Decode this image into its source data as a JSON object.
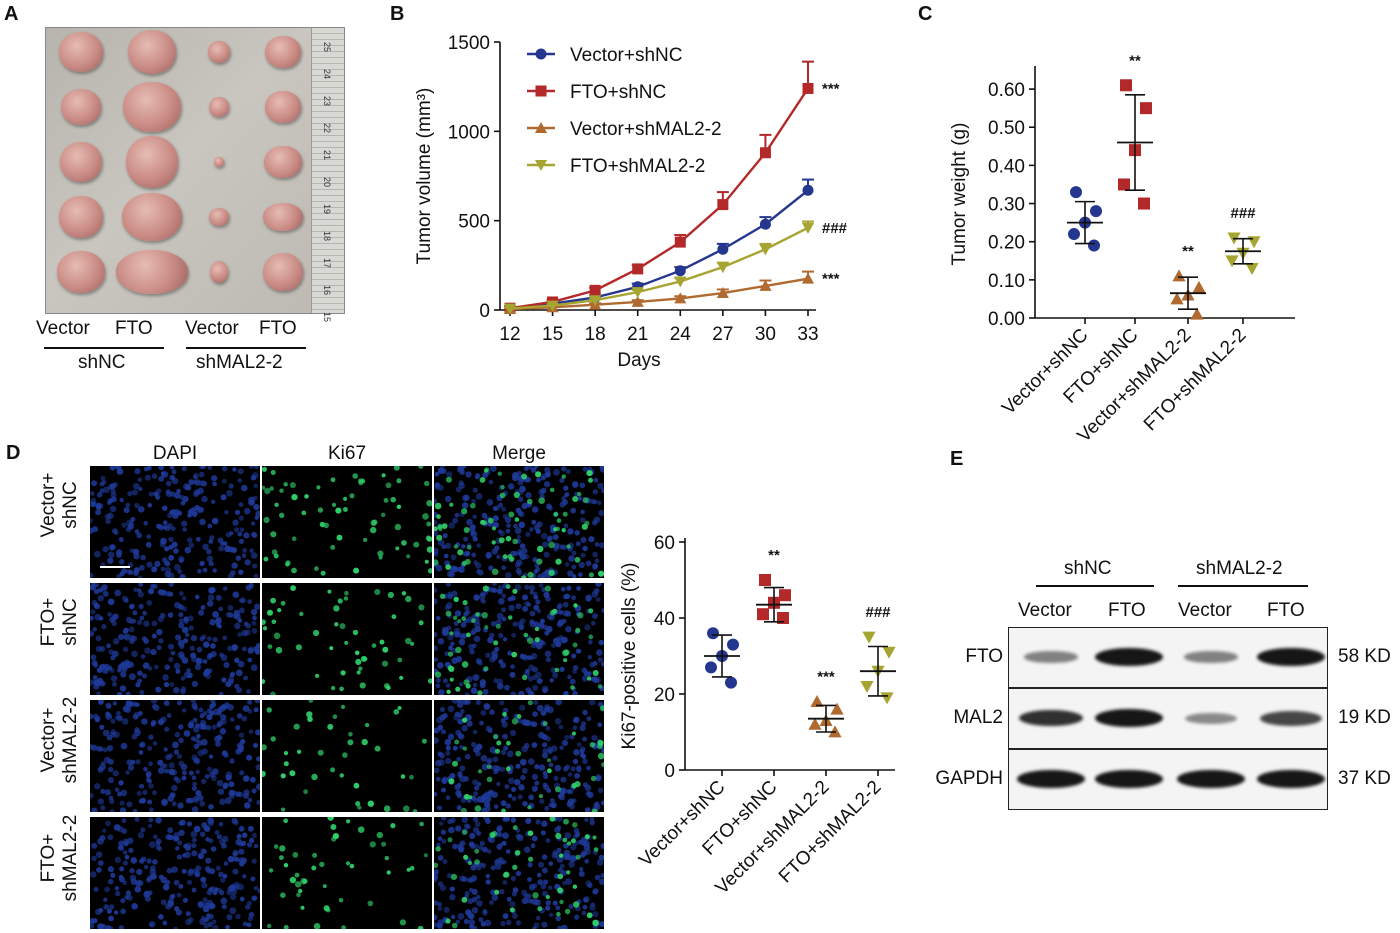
{
  "panels": {
    "a": "A",
    "b": "B",
    "c": "C",
    "d": "D",
    "e": "E"
  },
  "panel_a": {
    "col_labels": [
      "Vector",
      "FTO",
      "Vector",
      "FTO"
    ],
    "group_labels": [
      "shNC",
      "shMAL2-2"
    ],
    "ruler_numbers": [
      "25",
      "24",
      "23",
      "22",
      "21",
      "20",
      "19",
      "18",
      "17",
      "16",
      "15"
    ]
  },
  "panel_d_images": {
    "column_headers": [
      "DAPI",
      "Ki67",
      "Merge"
    ],
    "row_labels": [
      [
        "Vector+",
        "shNC"
      ],
      [
        "FTO+",
        "shNC"
      ],
      [
        "Vector+",
        "shMAL2-2"
      ],
      [
        "FTO+",
        "shMAL2-2"
      ]
    ]
  },
  "panel_e": {
    "group_labels": [
      "shNC",
      "shMAL2-2"
    ],
    "lane_labels": [
      "Vector",
      "FTO",
      "Vector",
      "FTO"
    ],
    "proteins": [
      {
        "name": "FTO",
        "size": "58 KD",
        "intensity": [
          0.35,
          1.0,
          0.35,
          1.0
        ]
      },
      {
        "name": "MAL2",
        "size": "19 KD",
        "intensity": [
          0.85,
          1.0,
          0.3,
          0.7
        ]
      },
      {
        "name": "GAPDH",
        "size": "37 KD",
        "intensity": [
          1.0,
          1.0,
          1.0,
          1.0
        ]
      }
    ]
  },
  "colors": {
    "Vector+shNC": "#25368f",
    "FTO+shNC": "#b3292a",
    "Vector+shMAL2-2": "#b06a2f",
    "FTO+shMAL2-2": "#a7a531",
    "dapi": "#1f3a9a",
    "ki67": "#2fcf6a"
  },
  "chart_data": [
    {
      "type": "line",
      "panel": "B",
      "xlabel": "Days",
      "ylabel": "Tumor volume (mm³)",
      "x": [
        12,
        15,
        18,
        21,
        24,
        27,
        30,
        33
      ],
      "x_ticks": [
        "12",
        "15",
        "18",
        "21",
        "24",
        "27",
        "30",
        "33"
      ],
      "ylim": [
        0,
        1500
      ],
      "y_ticks": [
        "0",
        "500",
        "1000",
        "1500"
      ],
      "legend_position": "top-left",
      "series": [
        {
          "name": "Vector+shNC",
          "marker": "circle",
          "values": [
            10,
            35,
            70,
            130,
            220,
            340,
            480,
            670
          ],
          "err": [
            8,
            10,
            12,
            18,
            20,
            30,
            40,
            60
          ],
          "annotation": ""
        },
        {
          "name": "FTO+shNC",
          "marker": "square",
          "values": [
            10,
            45,
            110,
            230,
            380,
            590,
            880,
            1240
          ],
          "err": [
            8,
            12,
            15,
            20,
            40,
            70,
            100,
            150
          ],
          "annotation": "***"
        },
        {
          "name": "Vector+shMAL2-2",
          "marker": "triangle-up",
          "values": [
            5,
            15,
            30,
            45,
            65,
            95,
            135,
            175
          ],
          "err": [
            5,
            5,
            8,
            10,
            12,
            20,
            30,
            40
          ],
          "annotation": "***"
        },
        {
          "name": "FTO+shMAL2-2",
          "marker": "triangle-down",
          "values": [
            8,
            25,
            55,
            100,
            160,
            240,
            340,
            460
          ],
          "err": [
            6,
            8,
            10,
            12,
            18,
            25,
            30,
            35
          ],
          "annotation": "###"
        }
      ]
    },
    {
      "type": "scatter",
      "panel": "C",
      "ylabel": "Tumor weight (g)",
      "categories": [
        "Vector+shNC",
        "FTO+shNC",
        "Vector+shMAL2-2",
        "FTO+shMAL2-2"
      ],
      "ylim": [
        0,
        0.65
      ],
      "y_ticks": [
        "0.00",
        "0.10",
        "0.20",
        "0.30",
        "0.40",
        "0.50",
        "0.60"
      ],
      "groups": [
        {
          "name": "Vector+shNC",
          "marker": "circle",
          "points": [
            0.33,
            0.28,
            0.25,
            0.22,
            0.19
          ],
          "mean": 0.25,
          "sd": 0.055,
          "annotation": ""
        },
        {
          "name": "FTO+shNC",
          "marker": "square",
          "points": [
            0.61,
            0.55,
            0.44,
            0.35,
            0.3
          ],
          "mean": 0.46,
          "sd": 0.125,
          "annotation": "**"
        },
        {
          "name": "Vector+shMAL2-2",
          "marker": "triangle-up",
          "points": [
            0.11,
            0.08,
            0.06,
            0.05,
            0.01
          ],
          "mean": 0.065,
          "sd": 0.042,
          "annotation": "**"
        },
        {
          "name": "FTO+shMAL2-2",
          "marker": "triangle-down",
          "points": [
            0.21,
            0.2,
            0.17,
            0.15,
            0.13
          ],
          "mean": 0.175,
          "sd": 0.033,
          "annotation": "###"
        }
      ]
    },
    {
      "type": "scatter",
      "panel": "D",
      "ylabel": "Ki67-positive cells (%)",
      "categories": [
        "Vector+shNC",
        "FTO+shNC",
        "Vector+shMAL2-2",
        "FTO+shMAL2-2"
      ],
      "ylim": [
        0,
        60
      ],
      "y_ticks": [
        "0",
        "20",
        "40",
        "60"
      ],
      "groups": [
        {
          "name": "Vector+shNC",
          "marker": "circle",
          "points": [
            36,
            33,
            30,
            27,
            23
          ],
          "mean": 30,
          "sd": 5.5,
          "annotation": ""
        },
        {
          "name": "FTO+shNC",
          "marker": "square",
          "points": [
            50,
            46,
            44,
            41,
            40
          ],
          "mean": 43.5,
          "sd": 4.5,
          "annotation": "**"
        },
        {
          "name": "Vector+shMAL2-2",
          "marker": "triangle-up",
          "points": [
            18,
            16,
            13,
            12,
            10
          ],
          "mean": 13.5,
          "sd": 3.5,
          "annotation": "***"
        },
        {
          "name": "FTO+shMAL2-2",
          "marker": "triangle-down",
          "points": [
            35,
            31,
            26,
            22,
            19
          ],
          "mean": 26,
          "sd": 6.5,
          "annotation": "###"
        }
      ]
    }
  ]
}
